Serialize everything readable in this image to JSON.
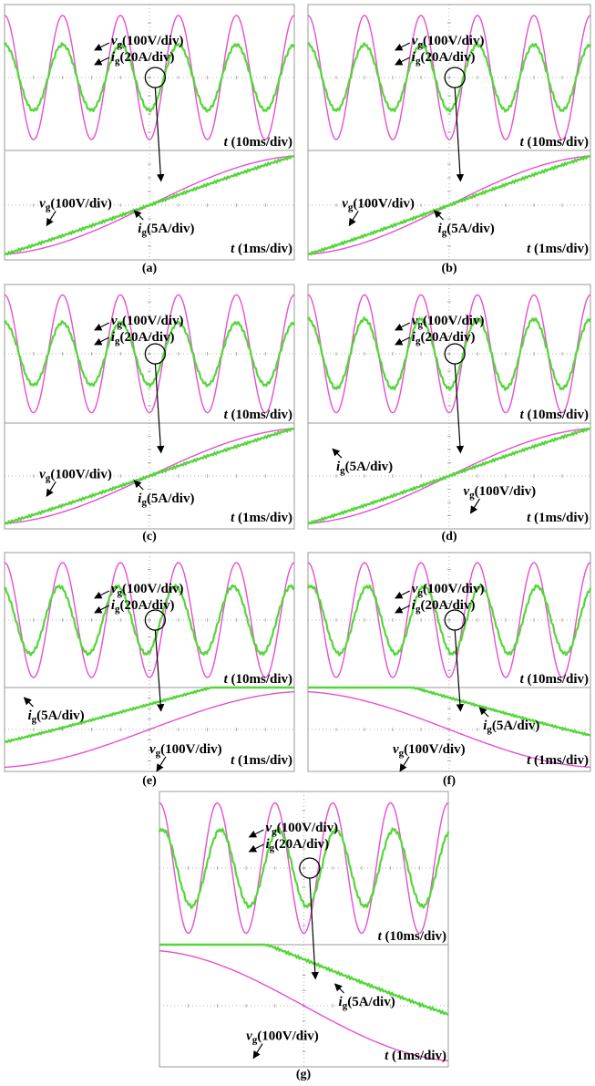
{
  "colors": {
    "voltage": "#e64fd0",
    "current": "#55d63a",
    "grid": "#9a9a9a",
    "frame": "#9a9a9a",
    "annotation": "#000000"
  },
  "labels": {
    "vg_name": "v",
    "ig_name": "i",
    "sub": "g",
    "vg_scale": "(100V/div)",
    "ig_scale_top": "(20A/div)",
    "ig_scale_bottom": "(5A/div)",
    "t_symbol": "t",
    "time_top": "(10ms/div)",
    "time_bottom": "(1ms/div)"
  },
  "chart_data": [
    {
      "panel": "(a)",
      "type": "line",
      "top": {
        "time_per_div": "10ms",
        "series": [
          {
            "name": "v_g",
            "scale": "100V/div",
            "waveform": "sinusoid",
            "cycles_shown": 5,
            "amplitude_div": 1.7
          },
          {
            "name": "i_g",
            "scale": "20A/div",
            "waveform": "sinusoid",
            "cycles_shown": 5,
            "amplitude_div": 0.9,
            "phase_deg": 0
          }
        ]
      },
      "bottom": {
        "time_per_div": "1ms",
        "series": [
          {
            "name": "v_g",
            "scale": "100V/div",
            "slope": "rising"
          },
          {
            "name": "i_g",
            "scale": "5A/div",
            "slope": "rising"
          }
        ]
      }
    },
    {
      "panel": "(b)",
      "type": "line",
      "top": {
        "time_per_div": "10ms",
        "series": [
          {
            "name": "v_g",
            "scale": "100V/div",
            "waveform": "sinusoid",
            "cycles_shown": 5,
            "amplitude_div": 1.7
          },
          {
            "name": "i_g",
            "scale": "20A/div",
            "waveform": "sinusoid",
            "cycles_shown": 5,
            "amplitude_div": 0.9,
            "phase_deg": 0
          }
        ]
      },
      "bottom": {
        "time_per_div": "1ms",
        "series": [
          {
            "name": "v_g",
            "scale": "100V/div",
            "slope": "rising"
          },
          {
            "name": "i_g",
            "scale": "5A/div",
            "slope": "rising"
          }
        ]
      }
    },
    {
      "panel": "(c)",
      "type": "line",
      "top": {
        "time_per_div": "10ms",
        "series": [
          {
            "name": "v_g",
            "scale": "100V/div",
            "waveform": "sinusoid",
            "cycles_shown": 5,
            "amplitude_div": 1.7
          },
          {
            "name": "i_g",
            "scale": "20A/div",
            "waveform": "sinusoid",
            "cycles_shown": 5,
            "amplitude_div": 0.9,
            "phase_deg": 0
          }
        ]
      },
      "bottom": {
        "time_per_div": "1ms",
        "series": [
          {
            "name": "v_g",
            "scale": "100V/div",
            "slope": "rising"
          },
          {
            "name": "i_g",
            "scale": "5A/div",
            "slope": "rising"
          }
        ]
      }
    },
    {
      "panel": "(d)",
      "type": "line",
      "top": {
        "time_per_div": "10ms",
        "series": [
          {
            "name": "v_g",
            "scale": "100V/div",
            "waveform": "sinusoid",
            "cycles_shown": 5,
            "amplitude_div": 1.7
          },
          {
            "name": "i_g",
            "scale": "20A/div",
            "waveform": "sinusoid",
            "cycles_shown": 5,
            "amplitude_div": 1.0,
            "phase_deg": 0
          }
        ]
      },
      "bottom": {
        "time_per_div": "1ms",
        "series": [
          {
            "name": "v_g",
            "scale": "100V/div",
            "slope": "rising"
          },
          {
            "name": "i_g",
            "scale": "5A/div",
            "slope": "rising"
          }
        ]
      }
    },
    {
      "panel": "(e)",
      "type": "line",
      "top": {
        "time_per_div": "10ms",
        "series": [
          {
            "name": "v_g",
            "scale": "100V/div",
            "waveform": "sinusoid",
            "cycles_shown": 5,
            "amplitude_div": 1.7
          },
          {
            "name": "i_g",
            "scale": "20A/div",
            "waveform": "sinusoid",
            "cycles_shown": 5,
            "amplitude_div": 1.0,
            "phase_deg": 20
          }
        ]
      },
      "bottom": {
        "time_per_div": "1ms",
        "series": [
          {
            "name": "v_g",
            "scale": "100V/div",
            "slope": "rising"
          },
          {
            "name": "i_g",
            "scale": "5A/div",
            "slope": "rising",
            "leads": true
          }
        ]
      }
    },
    {
      "panel": "(f)",
      "type": "line",
      "top": {
        "time_per_div": "10ms",
        "series": [
          {
            "name": "v_g",
            "scale": "100V/div",
            "waveform": "sinusoid",
            "cycles_shown": 5,
            "amplitude_div": 1.7
          },
          {
            "name": "i_g",
            "scale": "20A/div",
            "waveform": "sinusoid",
            "cycles_shown": 5,
            "amplitude_div": 1.0,
            "phase_deg": -20
          }
        ]
      },
      "bottom": {
        "time_per_div": "1ms",
        "series": [
          {
            "name": "v_g",
            "scale": "100V/div",
            "slope": "falling"
          },
          {
            "name": "i_g",
            "scale": "5A/div",
            "slope": "falling",
            "lags": true
          }
        ]
      }
    },
    {
      "panel": "(g)",
      "type": "line",
      "top": {
        "time_per_div": "10ms",
        "series": [
          {
            "name": "v_g",
            "scale": "100V/div",
            "waveform": "sinusoid",
            "cycles_shown": 5,
            "amplitude_div": 1.7
          },
          {
            "name": "i_g",
            "scale": "20A/div",
            "waveform": "sinusoid",
            "cycles_shown": 5,
            "amplitude_div": 1.0,
            "phase_deg": -20
          }
        ]
      },
      "bottom": {
        "time_per_div": "1ms",
        "series": [
          {
            "name": "v_g",
            "scale": "100V/div",
            "slope": "falling"
          },
          {
            "name": "i_g",
            "scale": "5A/div",
            "slope": "falling",
            "lags": true
          }
        ]
      }
    }
  ]
}
